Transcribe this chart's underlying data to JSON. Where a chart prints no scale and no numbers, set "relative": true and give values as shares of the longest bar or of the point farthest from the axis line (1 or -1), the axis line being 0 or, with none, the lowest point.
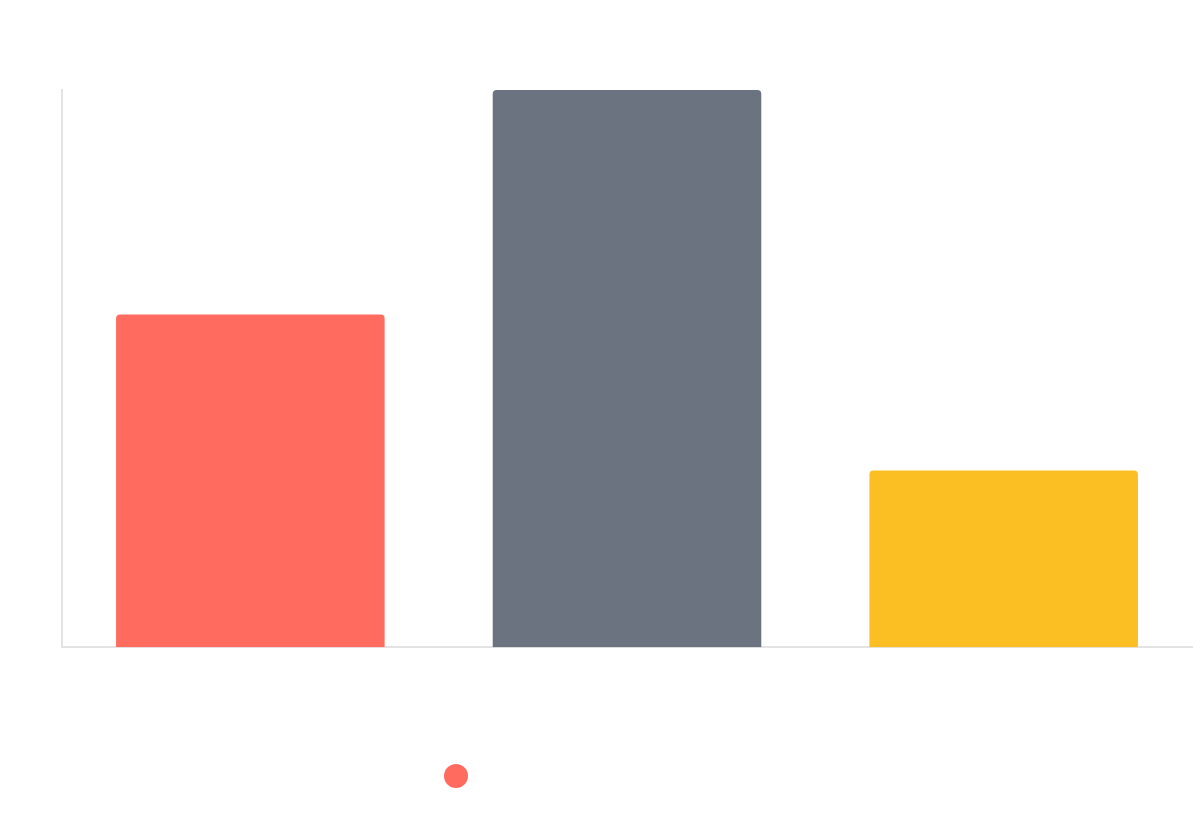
{
  "chart_data": {
    "type": "bar",
    "relative": true,
    "categories": [
      null,
      null,
      null
    ],
    "values": [
      0.597,
      1,
      0.317
    ],
    "colors": [
      "#ff6b5f",
      "#6b7280",
      "#fbbf24"
    ],
    "grid": false,
    "legend": false
  }
}
